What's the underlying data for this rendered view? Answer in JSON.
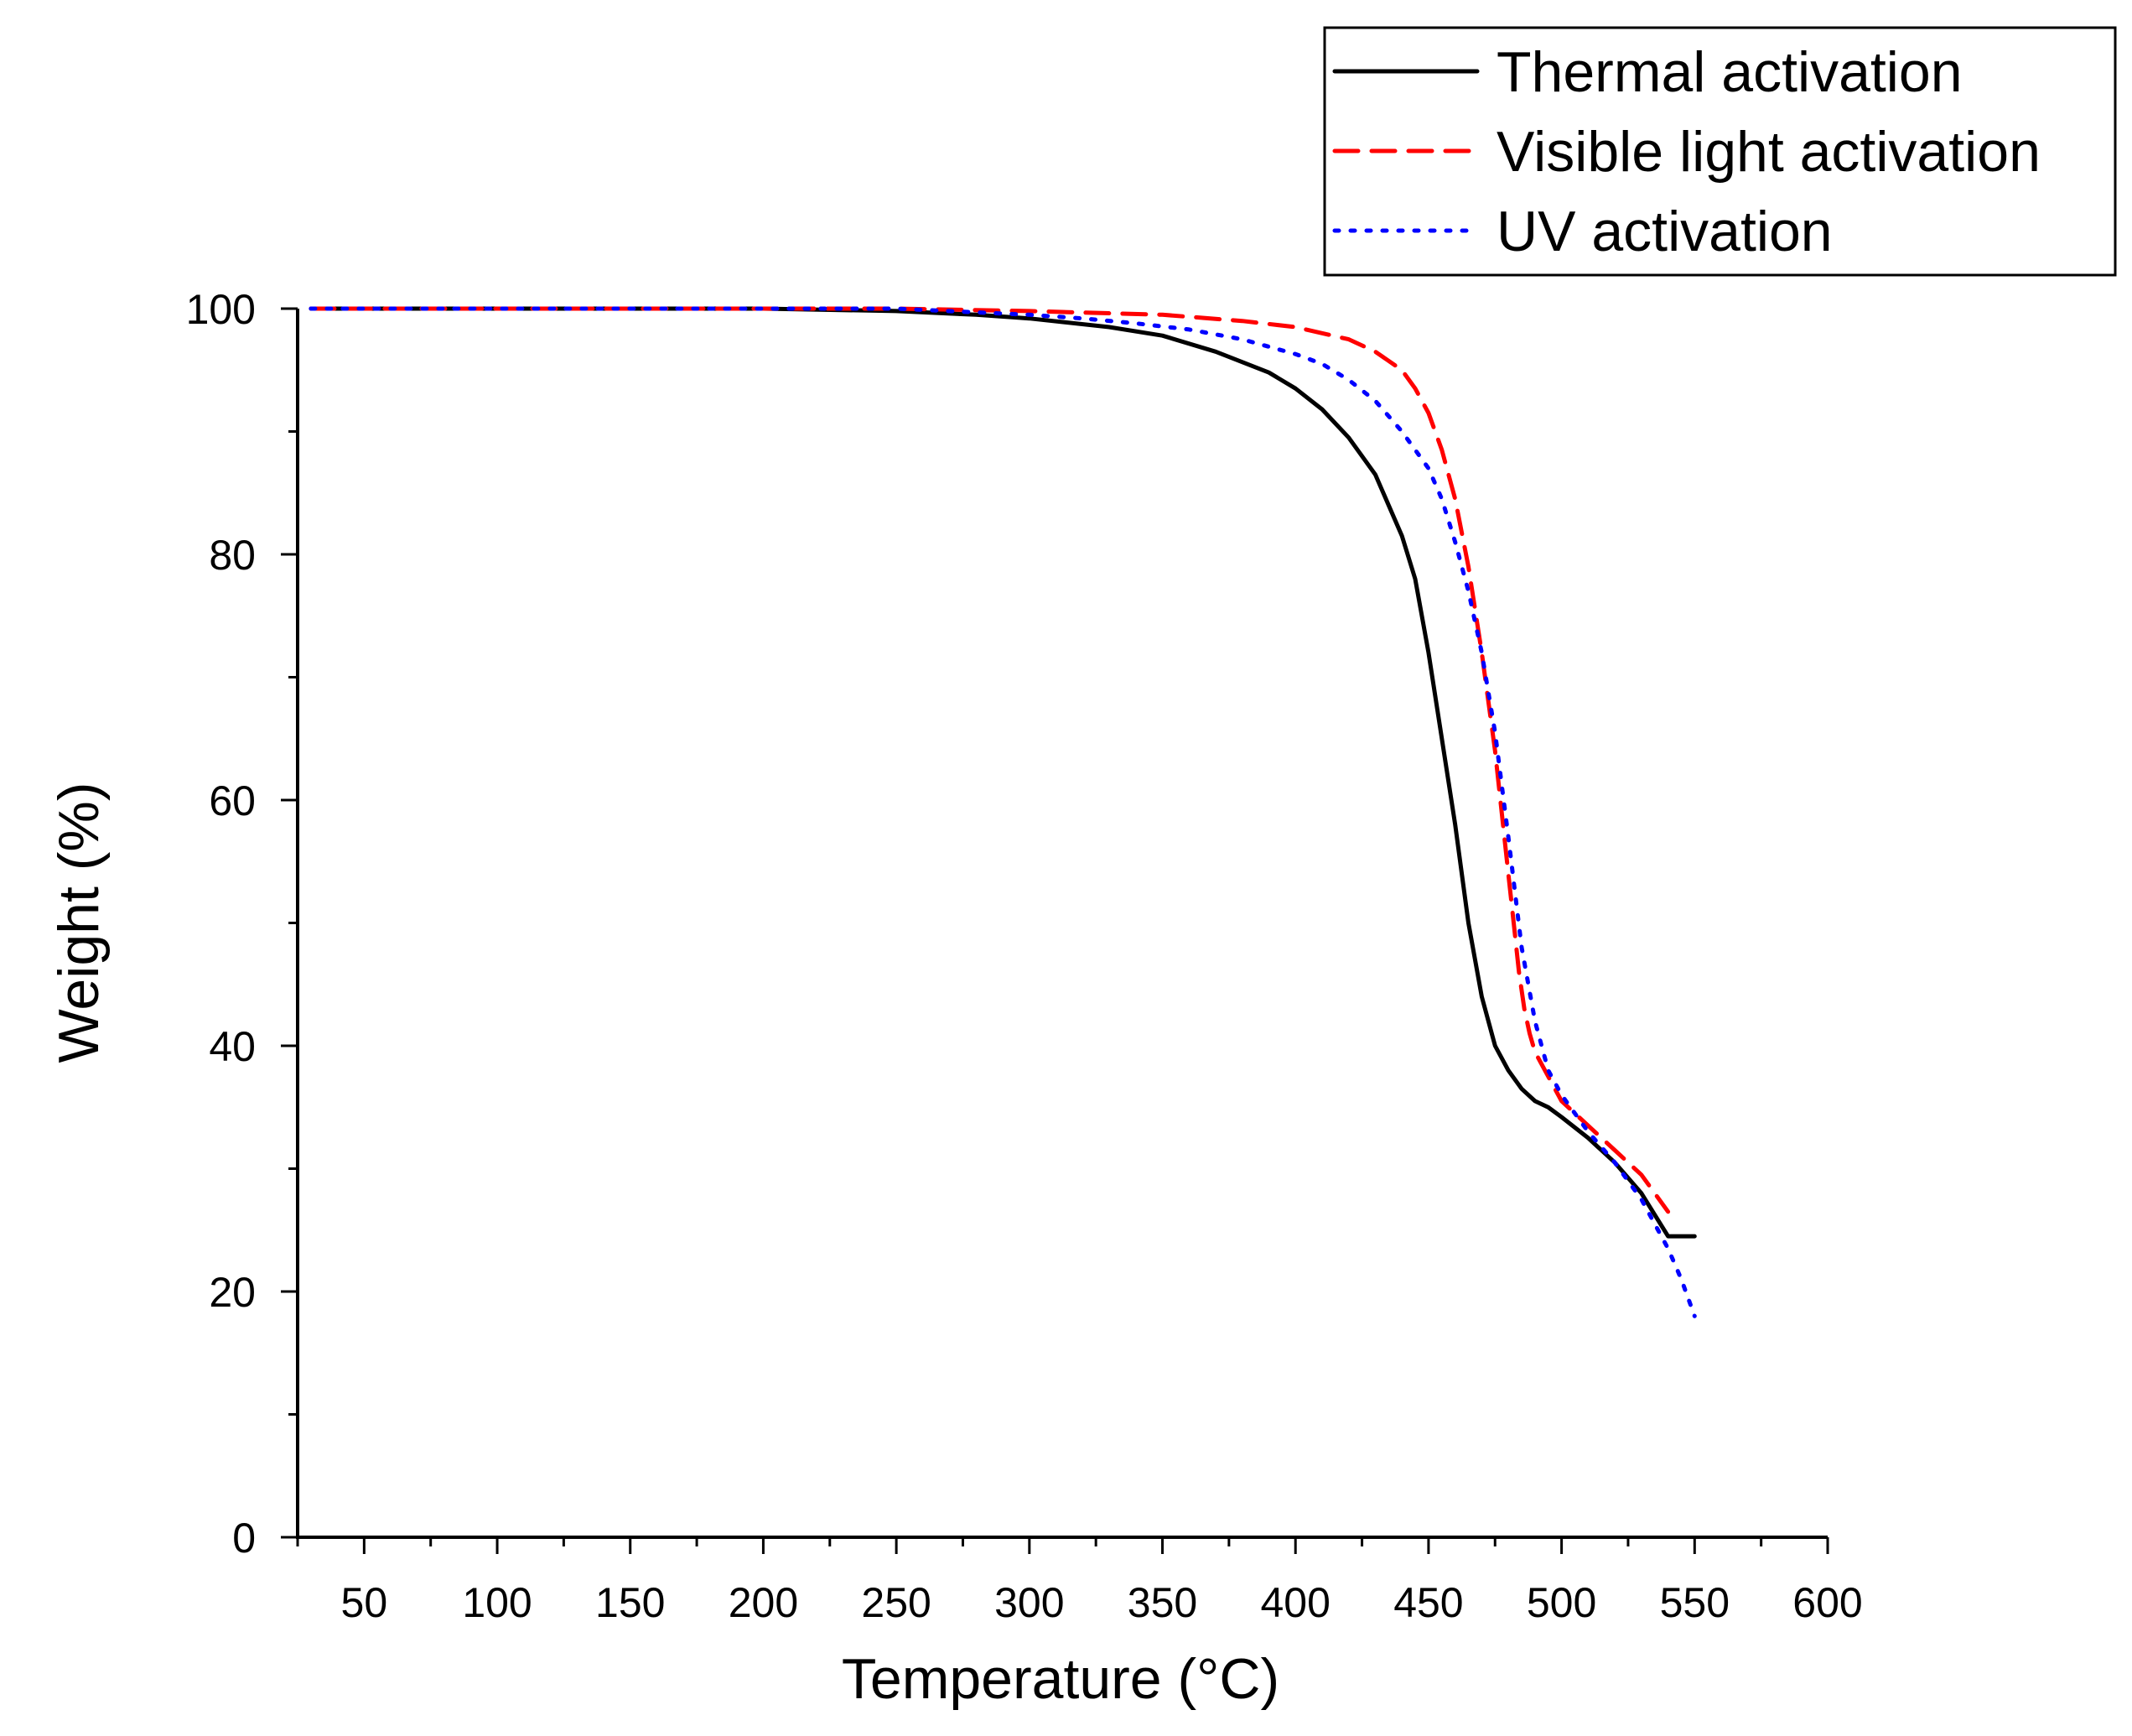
{
  "chart_data": {
    "type": "line",
    "title": "",
    "xlabel": "Temperature (°C)",
    "ylabel": "Weight (%)",
    "xlim": [
      25,
      600
    ],
    "ylim": [
      0,
      100
    ],
    "xticks": [
      50,
      100,
      150,
      200,
      250,
      300,
      350,
      400,
      450,
      500,
      550,
      600
    ],
    "yticks": [
      0,
      20,
      40,
      60,
      80,
      100
    ],
    "grid": false,
    "legend_position": "top-right",
    "series": [
      {
        "name": "Thermal activation",
        "color": "#000000",
        "style": "solid",
        "x": [
          30,
          100,
          200,
          250,
          280,
          300,
          330,
          350,
          370,
          390,
          400,
          410,
          420,
          430,
          440,
          445,
          450,
          455,
          460,
          465,
          470,
          475,
          480,
          485,
          490,
          495,
          500,
          510,
          520,
          530,
          540,
          550
        ],
        "y": [
          100,
          100,
          100,
          99.8,
          99.5,
          99.2,
          98.5,
          97.8,
          96.5,
          94.8,
          93.5,
          91.8,
          89.5,
          86.5,
          81.5,
          78,
          72,
          65,
          58,
          50,
          44,
          40,
          38,
          36.5,
          35.5,
          35,
          34.2,
          32.5,
          30.5,
          28,
          24.5,
          24.5
        ]
      },
      {
        "name": "Visible light activation",
        "color": "#ff0000",
        "style": "dashed",
        "x": [
          30,
          100,
          200,
          250,
          300,
          350,
          380,
          400,
          420,
          430,
          440,
          445,
          450,
          455,
          460,
          465,
          470,
          475,
          480,
          482,
          484,
          486,
          488,
          490,
          495,
          500,
          510,
          520,
          530,
          540
        ],
        "y": [
          100,
          100,
          100,
          100,
          99.8,
          99.5,
          99,
          98.5,
          97.5,
          96.5,
          95,
          93.5,
          91.5,
          88.5,
          84.5,
          79,
          72,
          64,
          54,
          50,
          46,
          43,
          41,
          39.5,
          37.5,
          35.5,
          33.5,
          31.5,
          29.5,
          26.5
        ]
      },
      {
        "name": "UV activation",
        "color": "#0000ff",
        "style": "dotted",
        "x": [
          30,
          100,
          200,
          250,
          280,
          300,
          320,
          340,
          360,
          380,
          400,
          410,
          420,
          430,
          440,
          450,
          455,
          460,
          465,
          470,
          475,
          480,
          485,
          490,
          495,
          500,
          510,
          520,
          530,
          540,
          545,
          550
        ],
        "y": [
          100,
          100,
          100,
          100,
          99.7,
          99.5,
          99.2,
          98.8,
          98.3,
          97.5,
          96.3,
          95.5,
          94.2,
          92.5,
          90,
          87,
          84.5,
          81,
          77,
          72,
          65.5,
          57,
          48,
          42,
          38,
          36,
          33,
          30.5,
          27.5,
          23.5,
          21,
          18
        ]
      }
    ]
  }
}
